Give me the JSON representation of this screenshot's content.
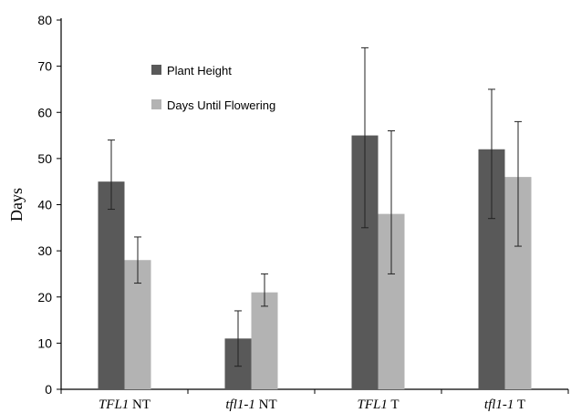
{
  "chart_data": {
    "type": "bar",
    "ylabel": "Days",
    "ylim": [
      0,
      80
    ],
    "yticks": [
      "0",
      "10",
      "20",
      "30",
      "40",
      "50",
      "60",
      "70",
      "80"
    ],
    "grid": false,
    "legend_placement": "top-left",
    "categories": [
      {
        "italic": "TFL1",
        "rest": " NT"
      },
      {
        "italic": "tfl1-1",
        "rest": " NT"
      },
      {
        "italic": "TFL1",
        "rest": " T"
      },
      {
        "italic": "tfl1-1",
        "rest": " T"
      }
    ],
    "series": [
      {
        "name": "Plant Height",
        "color": "#595959",
        "values": [
          45,
          11,
          55,
          52
        ],
        "error_low": [
          39,
          5,
          35,
          37
        ],
        "error_high": [
          54,
          17,
          74,
          65
        ]
      },
      {
        "name": "Days Until Flowering",
        "color": "#b3b3b3",
        "values": [
          28,
          21,
          38,
          46
        ],
        "error_low": [
          23,
          18,
          25,
          31
        ],
        "error_high": [
          33,
          25,
          56,
          58
        ]
      }
    ]
  }
}
